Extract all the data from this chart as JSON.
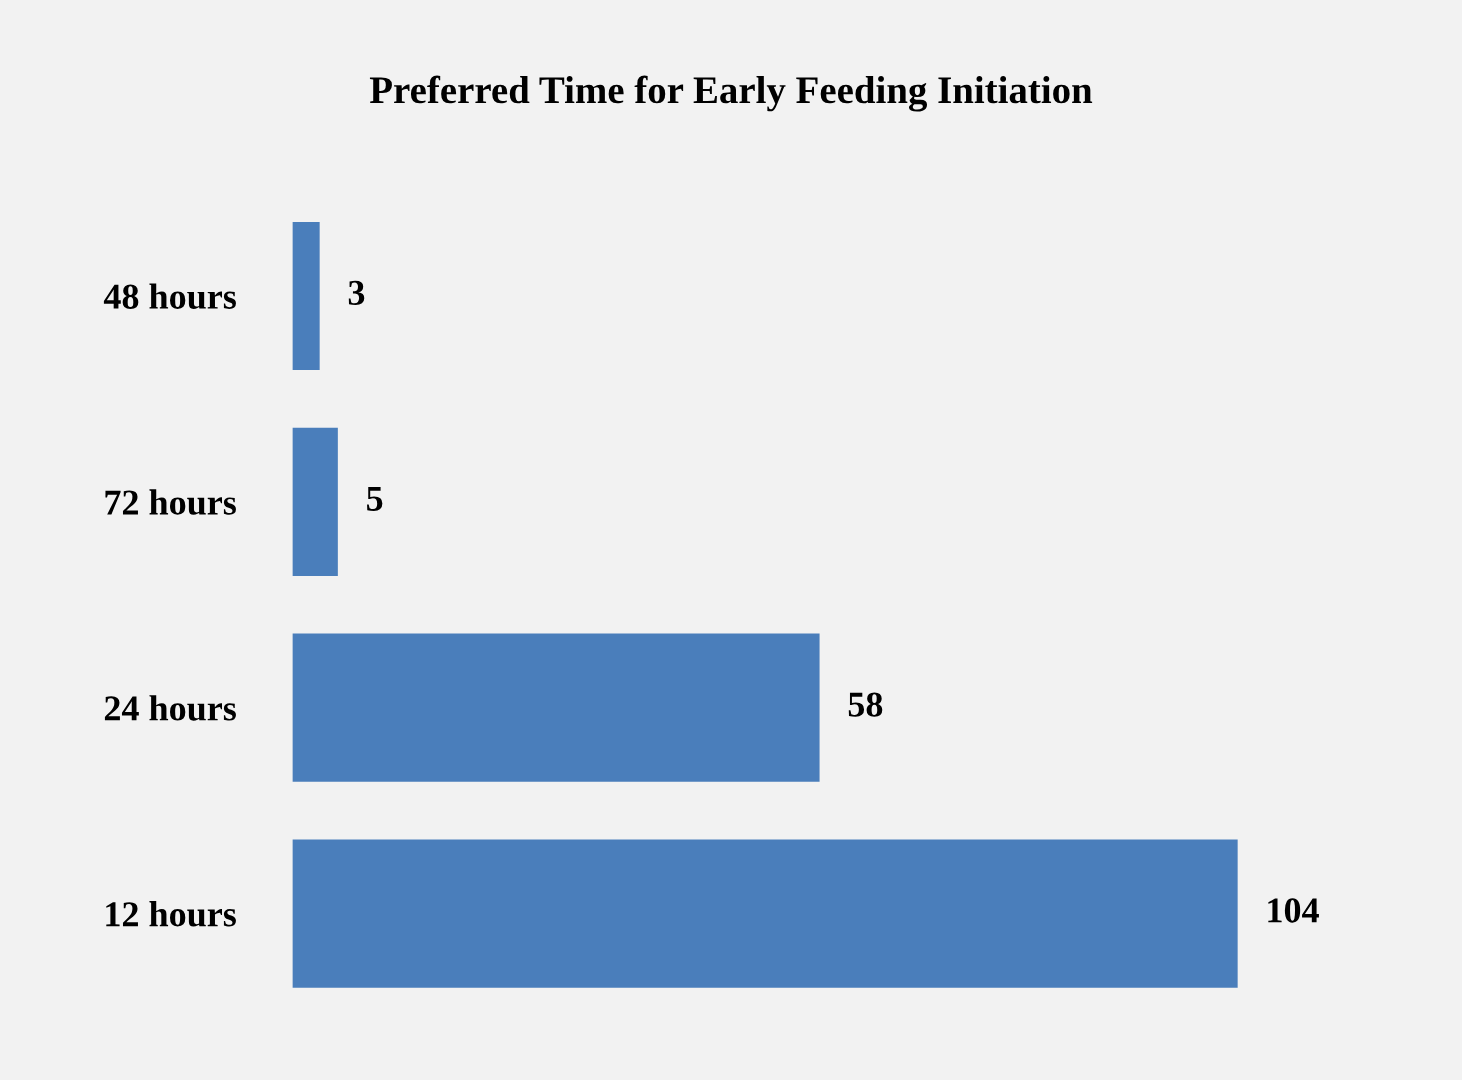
{
  "chart_data": {
    "type": "bar",
    "orientation": "horizontal",
    "title": "Preferred Time for Early Feeding Initiation",
    "categories": [
      "48 hours",
      "72 hours",
      "24 hours",
      "12 hours"
    ],
    "values": [
      3,
      5,
      58,
      104
    ],
    "color": "#4a7ebb",
    "data_labels": true,
    "grid": false,
    "legend": false
  }
}
